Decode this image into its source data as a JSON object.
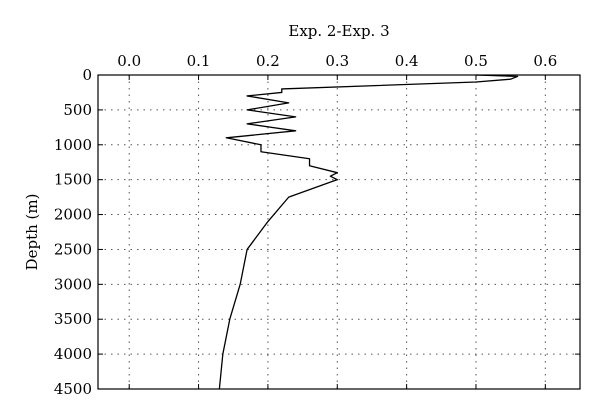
{
  "chart_data": {
    "type": "line",
    "title": "",
    "xlabel": "Exp. 2-Exp. 3",
    "ylabel": "Depth (m)",
    "x_axis_position": "top",
    "y_axis_inverted": true,
    "xlim": [
      -0.045,
      0.65
    ],
    "ylim": [
      0,
      4500
    ],
    "x_ticks": [
      0.0,
      0.1,
      0.2,
      0.3,
      0.4,
      0.5,
      0.6
    ],
    "x_tick_labels": [
      "0.0",
      "0.1",
      "0.2",
      "0.3",
      "0.4",
      "0.5",
      "0.6"
    ],
    "y_ticks": [
      0,
      500,
      1000,
      1500,
      2000,
      2500,
      3000,
      3500,
      4000,
      4500
    ],
    "y_tick_labels": [
      "0",
      "500",
      "1000",
      "1500",
      "2000",
      "2500",
      "3000",
      "3500",
      "4000",
      "4500"
    ],
    "grid": true,
    "legend": "none",
    "series": [
      {
        "points": [
          [
            0.5,
            0
          ],
          [
            0.56,
            20
          ],
          [
            0.55,
            60
          ],
          [
            0.5,
            100
          ],
          [
            0.22,
            200
          ],
          [
            0.22,
            250
          ],
          [
            0.17,
            300
          ],
          [
            0.23,
            400
          ],
          [
            0.17,
            500
          ],
          [
            0.24,
            600
          ],
          [
            0.17,
            700
          ],
          [
            0.24,
            800
          ],
          [
            0.14,
            900
          ],
          [
            0.19,
            1000
          ],
          [
            0.19,
            1100
          ],
          [
            0.26,
            1200
          ],
          [
            0.26,
            1300
          ],
          [
            0.3,
            1400
          ],
          [
            0.29,
            1450
          ],
          [
            0.3,
            1500
          ],
          [
            0.23,
            1750
          ],
          [
            0.2,
            2100
          ],
          [
            0.17,
            2500
          ],
          [
            0.16,
            3000
          ],
          [
            0.145,
            3500
          ],
          [
            0.135,
            4000
          ],
          [
            0.13,
            4500
          ]
        ]
      }
    ]
  }
}
